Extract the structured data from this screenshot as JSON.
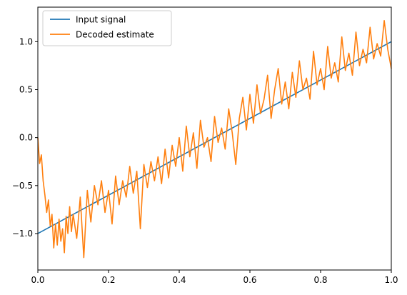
{
  "chart_data": {
    "type": "line",
    "title": "",
    "xlabel": "",
    "ylabel": "",
    "xlim": [
      0.0,
      1.0
    ],
    "ylim": [
      -1.38,
      1.36
    ],
    "grid": false,
    "legend_position": "top-left",
    "x_ticks": [
      {
        "value": 0.0,
        "label": "0.0"
      },
      {
        "value": 0.2,
        "label": "0.2"
      },
      {
        "value": 0.4,
        "label": "0.4"
      },
      {
        "value": 0.6,
        "label": "0.6"
      },
      {
        "value": 0.8,
        "label": "0.8"
      },
      {
        "value": 1.0,
        "label": "1.0"
      }
    ],
    "y_ticks": [
      {
        "value": -1.0,
        "label": "−1.0"
      },
      {
        "value": -0.5,
        "label": "−0.5"
      },
      {
        "value": 0.0,
        "label": "0.0"
      },
      {
        "value": 0.5,
        "label": "0.5"
      },
      {
        "value": 1.0,
        "label": "1.0"
      }
    ],
    "series": [
      {
        "name": "Input signal",
        "color": "#1f77b4",
        "x": [
          0.0,
          1.0
        ],
        "y": [
          -1.0,
          1.0
        ]
      },
      {
        "name": "Decoded estimate",
        "color": "#ff7f0e",
        "x": [
          0.0,
          0.005,
          0.01,
          0.015,
          0.02,
          0.025,
          0.03,
          0.035,
          0.04,
          0.045,
          0.05,
          0.055,
          0.06,
          0.065,
          0.07,
          0.075,
          0.08,
          0.085,
          0.09,
          0.095,
          0.1,
          0.11,
          0.12,
          0.13,
          0.14,
          0.15,
          0.16,
          0.17,
          0.18,
          0.19,
          0.2,
          0.21,
          0.22,
          0.23,
          0.24,
          0.25,
          0.26,
          0.27,
          0.28,
          0.29,
          0.3,
          0.31,
          0.32,
          0.33,
          0.34,
          0.35,
          0.36,
          0.37,
          0.38,
          0.39,
          0.4,
          0.41,
          0.42,
          0.43,
          0.44,
          0.45,
          0.46,
          0.47,
          0.48,
          0.49,
          0.5,
          0.51,
          0.52,
          0.53,
          0.54,
          0.55,
          0.56,
          0.57,
          0.58,
          0.59,
          0.6,
          0.61,
          0.62,
          0.63,
          0.64,
          0.65,
          0.66,
          0.67,
          0.68,
          0.69,
          0.7,
          0.71,
          0.72,
          0.73,
          0.74,
          0.75,
          0.76,
          0.77,
          0.78,
          0.79,
          0.8,
          0.81,
          0.82,
          0.83,
          0.84,
          0.85,
          0.86,
          0.87,
          0.88,
          0.89,
          0.9,
          0.91,
          0.92,
          0.93,
          0.94,
          0.95,
          0.96,
          0.97,
          0.98,
          0.99,
          1.0
        ],
        "y": [
          0.0,
          -0.27,
          -0.18,
          -0.45,
          -0.6,
          -0.78,
          -0.65,
          -0.92,
          -0.8,
          -1.15,
          -0.9,
          -1.12,
          -0.85,
          -1.08,
          -0.95,
          -1.2,
          -0.82,
          -1.0,
          -0.72,
          -0.98,
          -0.8,
          -1.05,
          -0.62,
          -1.25,
          -0.55,
          -0.88,
          -0.5,
          -0.7,
          -0.45,
          -0.78,
          -0.55,
          -0.9,
          -0.4,
          -0.7,
          -0.45,
          -0.62,
          -0.3,
          -0.58,
          -0.35,
          -0.95,
          -0.28,
          -0.52,
          -0.25,
          -0.45,
          -0.2,
          -0.48,
          -0.12,
          -0.42,
          -0.08,
          -0.3,
          0.0,
          -0.35,
          0.12,
          -0.2,
          0.05,
          -0.32,
          0.18,
          -0.1,
          0.0,
          -0.25,
          0.22,
          -0.05,
          0.1,
          -0.12,
          0.3,
          0.05,
          -0.28,
          0.2,
          0.42,
          0.08,
          0.45,
          0.15,
          0.55,
          0.25,
          0.4,
          0.65,
          0.2,
          0.5,
          0.72,
          0.35,
          0.58,
          0.3,
          0.68,
          0.42,
          0.8,
          0.5,
          0.62,
          0.4,
          0.9,
          0.55,
          0.72,
          0.5,
          0.95,
          0.62,
          0.78,
          0.58,
          1.05,
          0.7,
          0.88,
          0.65,
          1.1,
          0.75,
          0.92,
          0.78,
          1.15,
          0.82,
          0.98,
          0.85,
          1.22,
          0.92,
          0.72
        ]
      }
    ]
  }
}
